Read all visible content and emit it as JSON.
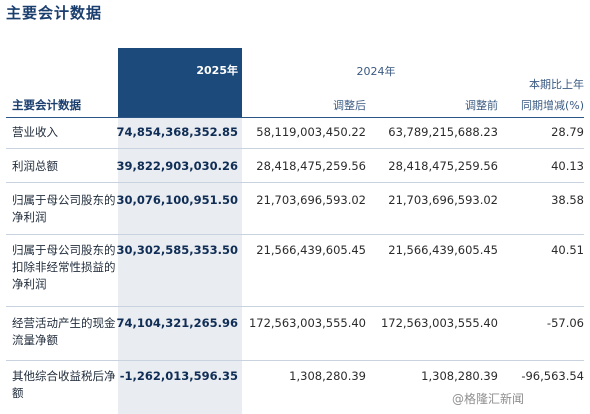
{
  "title": "主要会计数据",
  "header": {
    "label_col": "主要会计数据",
    "year_current": "2025年",
    "year_prior": "2024年",
    "adjusted_after": "调整后",
    "adjusted_before": "调整前",
    "change_line1": "本期比上年",
    "change_line2": "同期增减(%)"
  },
  "rows": [
    {
      "label": "营业收入",
      "v2025": "74,854,368,352.85",
      "after": "58,119,003,450.22",
      "before": "63,789,215,688.23",
      "change": "28.79"
    },
    {
      "label": "利润总额",
      "v2025": "39,822,903,030.26",
      "after": "28,418,475,259.56",
      "before": "28,418,475,259.56",
      "change": "40.13"
    },
    {
      "label": "归属于母公司股东的净利润",
      "v2025": "30,076,100,951.50",
      "after": "21,703,696,593.02",
      "before": "21,703,696,593.02",
      "change": "38.58"
    },
    {
      "label": "归属于母公司股东的扣除非经常性损益的净利润",
      "v2025": "30,302,585,353.50",
      "after": "21,566,439,605.45",
      "before": "21,566,439,605.45",
      "change": "40.51"
    },
    {
      "label": "经营活动产生的现金流量净额",
      "v2025": "74,104,321,265.96",
      "after": "172,563,003,555.40",
      "before": "172,563,003,555.40",
      "change": "-57.06"
    },
    {
      "label": "其他综合收益税后净额",
      "v2025": "-1,262,013,596.35",
      "after": "1,308,280.39",
      "before": "1,308,280.39",
      "change": "-96,563.54"
    }
  ],
  "watermark": "@格隆汇新闻"
}
